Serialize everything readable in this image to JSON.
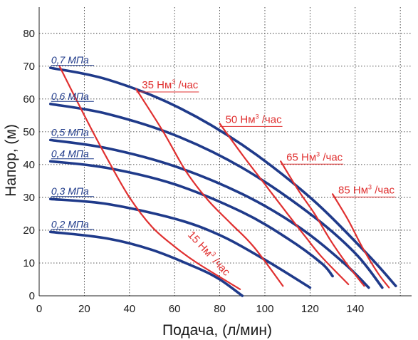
{
  "chart_data": {
    "type": "line",
    "xlabel": "Подача, (л/мин)",
    "ylabel": "Напор, (м)",
    "xlim": [
      0,
      165
    ],
    "ylim": [
      0,
      88
    ],
    "x_ticks": [
      0,
      20,
      40,
      60,
      80,
      100,
      120,
      140
    ],
    "y_ticks": [
      0,
      10,
      20,
      30,
      40,
      50,
      60,
      70,
      80
    ],
    "grid": true,
    "colors": {
      "pressure": "#1f3a8a",
      "airflow": "#e03030",
      "grid": "#222222"
    },
    "pressure_series": [
      {
        "name": "0,7 МПа",
        "points": [
          [
            5,
            69.5
          ],
          [
            30,
            66
          ],
          [
            60,
            58
          ],
          [
            90,
            46
          ],
          [
            120,
            30
          ],
          [
            145,
            13
          ],
          [
            158,
            3
          ]
        ]
      },
      {
        "name": "0,6 МПа",
        "points": [
          [
            5,
            58.5
          ],
          [
            30,
            55.5
          ],
          [
            60,
            49
          ],
          [
            90,
            39
          ],
          [
            120,
            25
          ],
          [
            140,
            13
          ],
          [
            152,
            2.5
          ]
        ]
      },
      {
        "name": "0,5 МПа",
        "points": [
          [
            5,
            47.5
          ],
          [
            30,
            45
          ],
          [
            60,
            39.5
          ],
          [
            90,
            31
          ],
          [
            115,
            21
          ],
          [
            135,
            10
          ],
          [
            146,
            2.5
          ]
        ]
      },
      {
        "name": "0,4 МПа",
        "points": [
          [
            5,
            41
          ],
          [
            30,
            39
          ],
          [
            60,
            34
          ],
          [
            90,
            25.5
          ],
          [
            110,
            17.5
          ],
          [
            125,
            10
          ],
          [
            130,
            6
          ]
        ]
      },
      {
        "name": "0,3 МПа",
        "points": [
          [
            5,
            29.5
          ],
          [
            30,
            28
          ],
          [
            60,
            23.5
          ],
          [
            80,
            18.5
          ],
          [
            100,
            11
          ],
          [
            120,
            2.5
          ]
        ]
      },
      {
        "name": "0,2 МПа",
        "points": [
          [
            5,
            19.5
          ],
          [
            30,
            17.5
          ],
          [
            50,
            14
          ],
          [
            70,
            8.5
          ],
          [
            80,
            5
          ],
          [
            90,
            0
          ]
        ]
      }
    ],
    "airflow_series": [
      {
        "name": "15 Нм³ /час",
        "label_main": "15 Нм",
        "label_sup": "3",
        "label_rest": " /час",
        "points": [
          [
            9,
            70
          ],
          [
            20,
            55
          ],
          [
            30,
            42
          ],
          [
            40,
            30
          ],
          [
            50,
            21
          ],
          [
            60,
            15
          ],
          [
            70,
            10
          ],
          [
            89,
            2
          ]
        ]
      },
      {
        "name": "35 Нм³ /час",
        "label_main": "35 Нм",
        "label_sup": "3",
        "label_rest": " /час",
        "points": [
          [
            43,
            63
          ],
          [
            55,
            50
          ],
          [
            65,
            38
          ],
          [
            75,
            29
          ],
          [
            85,
            22
          ],
          [
            95,
            15
          ],
          [
            108,
            3
          ]
        ]
      },
      {
        "name": "50 Нм³ /час",
        "label_main": "50 Нм",
        "label_sup": "3",
        "label_rest": " /час",
        "points": [
          [
            80,
            52.5
          ],
          [
            90,
            43
          ],
          [
            100,
            34
          ],
          [
            110,
            25
          ],
          [
            118,
            18
          ],
          [
            125,
            12
          ],
          [
            137,
            3.5
          ]
        ]
      },
      {
        "name": "65 Нм³ /час",
        "label_main": "65 Нм",
        "label_sup": "3",
        "label_rest": " /час",
        "points": [
          [
            107,
            41
          ],
          [
            115,
            32
          ],
          [
            122,
            25
          ],
          [
            129,
            17
          ],
          [
            136,
            10
          ],
          [
            144,
            3
          ]
        ]
      },
      {
        "name": "85 Нм³ /час",
        "label_main": "85 Нм",
        "label_sup": "3",
        "label_rest": " /час",
        "points": [
          [
            130,
            31
          ],
          [
            137,
            23
          ],
          [
            143,
            15
          ],
          [
            150,
            7
          ],
          [
            155,
            2.5
          ]
        ]
      }
    ]
  }
}
